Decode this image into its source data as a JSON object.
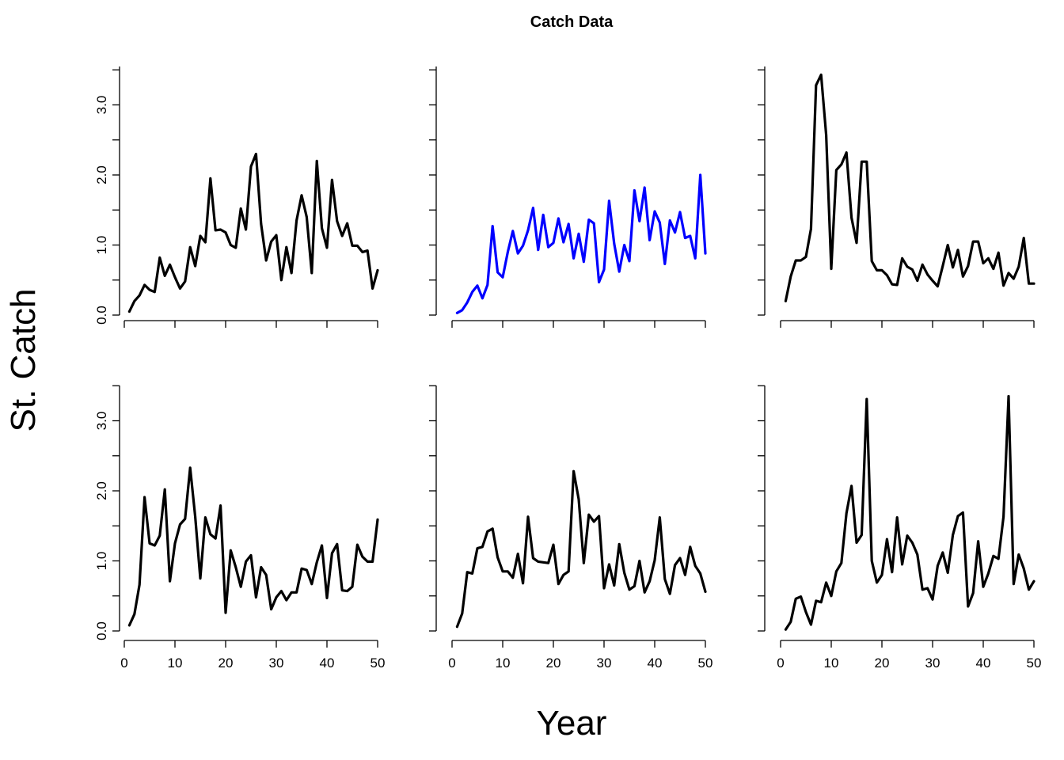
{
  "chart_data": {
    "type": "line",
    "title": "Catch Data",
    "xlabel": "Year",
    "ylabel": "St. Catch",
    "layout": "2x3",
    "grid": false,
    "legend": "none",
    "xlim": [
      1,
      50
    ],
    "ylim": [
      0,
      3.4
    ],
    "x_ticks": [
      "0",
      "10",
      "20",
      "30",
      "40",
      "50"
    ],
    "y_ticks": [
      "0.0",
      "1.0",
      "2.0",
      "3.0"
    ],
    "panels": [
      {
        "color": "#000000",
        "x_tick_labels": false,
        "y_tick_labels": true,
        "values": [
          0.05,
          0.2,
          0.28,
          0.43,
          0.36,
          0.33,
          0.82,
          0.56,
          0.72,
          0.54,
          0.38,
          0.48,
          0.97,
          0.7,
          1.13,
          1.04,
          1.95,
          1.21,
          1.22,
          1.18,
          1.0,
          0.96,
          1.52,
          1.22,
          2.12,
          2.3,
          1.3,
          0.78,
          1.05,
          1.14,
          0.5,
          0.97,
          0.6,
          1.35,
          1.71,
          1.4,
          0.6,
          2.2,
          1.24,
          0.96,
          1.93,
          1.34,
          1.13,
          1.31,
          0.99,
          0.99,
          0.9,
          0.92,
          0.38,
          0.64
        ]
      },
      {
        "color": "#0000ff",
        "x_tick_labels": false,
        "y_tick_labels": false,
        "values": [
          0.03,
          0.07,
          0.18,
          0.33,
          0.42,
          0.24,
          0.43,
          1.27,
          0.61,
          0.54,
          0.9,
          1.2,
          0.88,
          0.99,
          1.21,
          1.53,
          0.93,
          1.43,
          0.97,
          1.03,
          1.38,
          1.04,
          1.3,
          0.81,
          1.16,
          0.76,
          1.36,
          1.31,
          0.47,
          0.65,
          1.63,
          1.02,
          0.62,
          1.0,
          0.77,
          1.78,
          1.34,
          1.82,
          1.07,
          1.48,
          1.32,
          0.73,
          1.35,
          1.18,
          1.47,
          1.1,
          1.13,
          0.81,
          2.0,
          0.88
        ]
      },
      {
        "color": "#000000",
        "x_tick_labels": false,
        "y_tick_labels": false,
        "values": [
          0.2,
          0.55,
          0.78,
          0.78,
          0.83,
          1.23,
          3.28,
          3.43,
          2.57,
          0.66,
          2.07,
          2.15,
          2.32,
          1.39,
          1.03,
          2.19,
          2.19,
          0.77,
          0.64,
          0.64,
          0.57,
          0.44,
          0.43,
          0.81,
          0.69,
          0.65,
          0.49,
          0.72,
          0.58,
          0.49,
          0.41,
          0.7,
          1.0,
          0.68,
          0.93,
          0.55,
          0.7,
          1.05,
          1.05,
          0.74,
          0.81,
          0.66,
          0.89,
          0.42,
          0.6,
          0.52,
          0.69,
          1.1,
          0.45,
          0.45
        ]
      },
      {
        "color": "#000000",
        "x_tick_labels": true,
        "y_tick_labels": true,
        "values": [
          0.08,
          0.24,
          0.66,
          1.91,
          1.25,
          1.22,
          1.36,
          2.02,
          0.71,
          1.25,
          1.52,
          1.6,
          2.33,
          1.63,
          0.75,
          1.62,
          1.38,
          1.32,
          1.79,
          0.26,
          1.15,
          0.91,
          0.63,
          0.99,
          1.08,
          0.48,
          0.91,
          0.8,
          0.31,
          0.48,
          0.57,
          0.44,
          0.55,
          0.55,
          0.89,
          0.87,
          0.67,
          0.98,
          1.22,
          0.47,
          1.11,
          1.24,
          0.58,
          0.57,
          0.63,
          1.23,
          1.06,
          0.99,
          0.99,
          1.59
        ]
      },
      {
        "color": "#000000",
        "x_tick_labels": true,
        "y_tick_labels": false,
        "values": [
          0.06,
          0.25,
          0.84,
          0.82,
          1.18,
          1.2,
          1.42,
          1.46,
          1.05,
          0.85,
          0.85,
          0.76,
          1.1,
          0.68,
          1.63,
          1.04,
          0.99,
          0.98,
          0.97,
          1.23,
          0.67,
          0.8,
          0.85,
          2.28,
          1.88,
          0.97,
          1.66,
          1.56,
          1.64,
          0.61,
          0.95,
          0.65,
          1.24,
          0.83,
          0.59,
          0.64,
          1.0,
          0.55,
          0.71,
          1.01,
          1.62,
          0.74,
          0.53,
          0.94,
          1.04,
          0.8,
          1.2,
          0.93,
          0.82,
          0.56
        ]
      },
      {
        "color": "#000000",
        "x_tick_labels": true,
        "y_tick_labels": false,
        "values": [
          0.02,
          0.13,
          0.46,
          0.49,
          0.27,
          0.09,
          0.43,
          0.41,
          0.69,
          0.5,
          0.85,
          0.97,
          1.68,
          2.07,
          1.26,
          1.37,
          3.31,
          1.0,
          0.69,
          0.8,
          1.31,
          0.84,
          1.62,
          0.95,
          1.36,
          1.26,
          1.09,
          0.59,
          0.61,
          0.45,
          0.93,
          1.12,
          0.83,
          1.37,
          1.64,
          1.69,
          0.35,
          0.54,
          1.28,
          0.63,
          0.82,
          1.07,
          1.03,
          1.63,
          3.35,
          0.67,
          1.09,
          0.89,
          0.59,
          0.71
        ]
      }
    ]
  }
}
